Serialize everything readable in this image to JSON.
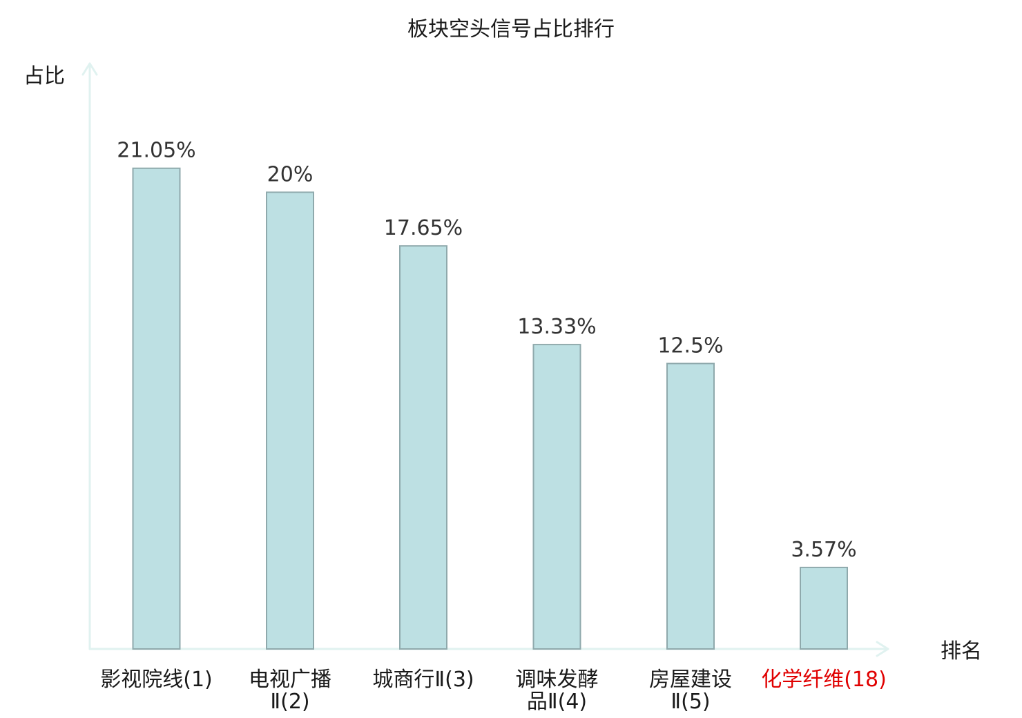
{
  "colors": {
    "bar_fill": "#bde0e3",
    "bar_stroke": "#8fa9ac",
    "axis": "#e0f2f0",
    "text": "#1a1a1a",
    "value_text": "#333333",
    "highlight": "#e00000"
  },
  "chart_data": {
    "type": "bar",
    "title": "板块空头信号占比排行",
    "ylabel": "占比",
    "xlabel": "排名",
    "ylim": [
      0,
      26
    ],
    "grid": false,
    "categories": [
      {
        "lines": [
          "影视院线(1)"
        ],
        "highlight": false
      },
      {
        "lines": [
          "电视广播",
          "Ⅱ(2)"
        ],
        "highlight": false
      },
      {
        "lines": [
          "城商行Ⅱ(3)"
        ],
        "highlight": false
      },
      {
        "lines": [
          "调味发酵",
          "品Ⅱ(4)"
        ],
        "highlight": false
      },
      {
        "lines": [
          "房屋建设",
          "Ⅱ(5)"
        ],
        "highlight": false
      },
      {
        "lines": [
          "化学纤维(18)"
        ],
        "highlight": true
      }
    ],
    "values": [
      21.05,
      20,
      17.65,
      13.33,
      12.5,
      3.57
    ],
    "value_labels": [
      "21.05%",
      "20%",
      "17.65%",
      "13.33%",
      "12.5%",
      "3.57%"
    ]
  }
}
